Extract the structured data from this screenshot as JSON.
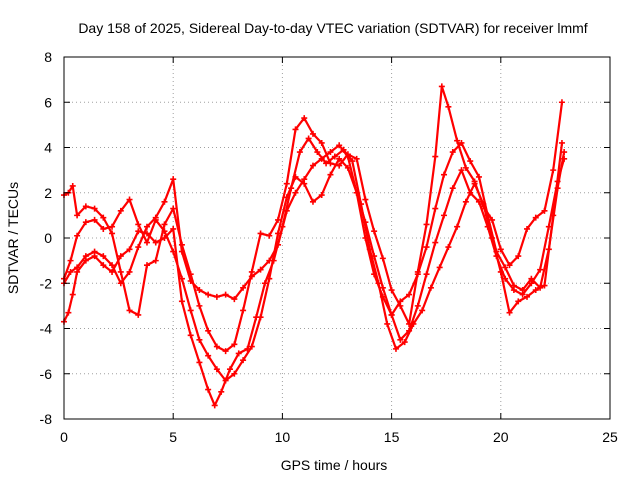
{
  "chart_data": {
    "type": "scatter",
    "title": "Day 158 of 2025, Sidereal Day-to-day VTEC variation (SDTVAR) for receiver lmmf",
    "xlabel": "GPS time / hours",
    "ylabel": "SDTVAR / TECUs",
    "xlim": [
      0,
      25
    ],
    "ylim": [
      -8,
      8
    ],
    "x_ticks": [
      "0",
      "5",
      "10",
      "15",
      "20",
      "25"
    ],
    "y_ticks": [
      "-8",
      "-6",
      "-4",
      "-2",
      "0",
      "2",
      "4",
      "6",
      "8"
    ],
    "grid": true,
    "marker": "plus",
    "color": "#ff0000",
    "series": [
      {
        "x": [
          0.0,
          0.2,
          0.4,
          0.6,
          1.0,
          1.4,
          1.8,
          2.2,
          2.6,
          3.0,
          3.4,
          3.8,
          4.2,
          4.6,
          5.0,
          5.4,
          5.8,
          6.2,
          6.6,
          6.9,
          7.2,
          7.6,
          8.0,
          8.4,
          8.8,
          9.2,
          9.6,
          10.0,
          10.4,
          10.8,
          11.2,
          11.6,
          12.0,
          12.4,
          12.8,
          13.2,
          13.6,
          14.0,
          14.4,
          14.8,
          15.2,
          15.6,
          16.0,
          16.4,
          16.8,
          17.2,
          17.6,
          18.0,
          18.4,
          18.8,
          19.2,
          19.6,
          20.0,
          20.4,
          20.8,
          21.2,
          21.6,
          22.0,
          22.4,
          22.8
        ],
        "y": [
          -3.7,
          -3.3,
          -2.5,
          -1.5,
          -1.0,
          -0.8,
          -1.2,
          -1.5,
          -0.8,
          -0.5,
          0.3,
          0.2,
          -0.2,
          0.0,
          0.4,
          -2.8,
          -4.3,
          -5.5,
          -6.7,
          -7.4,
          -6.8,
          -5.8,
          -5.1,
          -4.9,
          -3.5,
          -2.0,
          -1.0,
          0.5,
          2.2,
          3.8,
          4.4,
          3.8,
          3.3,
          3.6,
          3.9,
          3.4,
          1.5,
          -0.5,
          -2.0,
          -3.8,
          -4.9,
          -4.6,
          -3.8,
          -3.2,
          -2.2,
          -1.3,
          -0.4,
          0.5,
          1.6,
          2.4,
          1.5,
          0.0,
          -1.5,
          -3.3,
          -2.8,
          -2.6,
          -2.3,
          -2.1,
          1.0,
          4.2
        ]
      },
      {
        "x": [
          0.0,
          0.3,
          0.6,
          1.0,
          1.4,
          1.8,
          2.2,
          2.6,
          3.0,
          3.4,
          3.8,
          4.2,
          4.6,
          5.0,
          5.4,
          5.8,
          6.2,
          6.6,
          7.0,
          7.4,
          7.8,
          8.2,
          8.6,
          9.0,
          9.4,
          9.8,
          10.2,
          10.6,
          11.0,
          11.4,
          11.8,
          12.2,
          12.6,
          13.0,
          13.4,
          13.8,
          14.2,
          14.6,
          15.0,
          15.4,
          15.8,
          16.2,
          16.6,
          17.0,
          17.4,
          17.8,
          18.2,
          18.6,
          19.0,
          19.4,
          19.8,
          20.2,
          20.6,
          21.0,
          21.4,
          21.8,
          22.2,
          22.6,
          22.9
        ],
        "y": [
          -2.0,
          -1.5,
          -1.3,
          -0.8,
          -0.6,
          -0.8,
          -1.2,
          -2.0,
          -1.5,
          -0.4,
          0.5,
          0.9,
          1.6,
          2.6,
          -0.6,
          -1.9,
          -2.3,
          -2.5,
          -2.6,
          -2.5,
          -2.7,
          -2.2,
          -1.7,
          -1.4,
          -1.0,
          -0.3,
          1.2,
          2.0,
          2.6,
          3.2,
          3.5,
          3.8,
          4.1,
          3.6,
          2.0,
          0.0,
          -1.6,
          -2.6,
          -3.4,
          -4.5,
          -4.1,
          -3.0,
          -1.6,
          -0.2,
          1.0,
          2.2,
          3.0,
          2.0,
          1.6,
          0.5,
          -0.8,
          -1.8,
          -2.3,
          -2.5,
          -2.0,
          -1.4,
          0.5,
          2.5,
          3.5
        ]
      },
      {
        "x": [
          0.0,
          0.3,
          0.6,
          1.0,
          1.4,
          1.8,
          2.2,
          2.6,
          3.0,
          3.4,
          3.8,
          4.2,
          4.6,
          5.0,
          5.4,
          5.8,
          6.2,
          6.6,
          7.0,
          7.4,
          7.8,
          8.2,
          8.6,
          9.0,
          9.4,
          9.8,
          10.2,
          10.6,
          11.0,
          11.4,
          11.8,
          12.2,
          12.6,
          13.0,
          13.4,
          13.8,
          14.2,
          14.6,
          15.0,
          15.4,
          15.8,
          16.2,
          16.6,
          17.0,
          17.4,
          17.8,
          18.2,
          18.6,
          19.0,
          19.4,
          19.8,
          20.2,
          20.6,
          21.0,
          21.4,
          21.8,
          22.2,
          22.6,
          22.9
        ],
        "y": [
          -1.8,
          -1.0,
          0.1,
          0.7,
          0.8,
          0.4,
          0.5,
          1.2,
          1.7,
          0.6,
          -0.2,
          0.8,
          0.3,
          -0.6,
          -1.8,
          -3.2,
          -4.5,
          -5.2,
          -5.8,
          -6.3,
          -6.0,
          -5.4,
          -4.8,
          -3.5,
          -1.8,
          0.2,
          1.8,
          2.7,
          2.4,
          1.6,
          1.9,
          2.8,
          3.5,
          3.1,
          2.0,
          0.7,
          -0.8,
          -2.2,
          -3.4,
          -2.8,
          -2.5,
          -1.6,
          -0.4,
          1.3,
          2.8,
          3.8,
          4.2,
          3.4,
          2.7,
          1.0,
          -0.6,
          -1.3,
          -2.1,
          -2.3,
          -1.8,
          -2.2,
          -0.5,
          2.2,
          3.8
        ]
      },
      {
        "x": [
          0.0,
          0.2,
          0.4,
          0.6,
          1.0,
          1.4,
          1.8,
          2.2,
          2.6,
          3.0,
          3.4,
          3.8,
          4.2,
          4.6,
          5.0,
          5.4,
          5.8,
          6.2,
          6.6,
          7.0,
          7.4,
          7.8,
          8.2,
          8.6,
          9.0,
          9.4,
          9.8,
          10.2,
          10.6,
          11.0,
          11.4,
          11.8,
          12.2,
          12.6,
          13.0,
          13.4,
          13.8,
          14.2,
          14.6,
          15.0,
          15.4,
          15.8,
          16.2,
          16.6,
          17.0,
          17.3,
          17.6,
          18.0,
          18.4,
          18.8,
          19.2,
          19.6,
          20.0,
          20.4,
          20.8,
          21.2,
          21.6,
          22.0,
          22.4,
          22.8
        ],
        "y": [
          1.9,
          2.0,
          2.3,
          1.0,
          1.4,
          1.3,
          0.9,
          0.2,
          -1.5,
          -3.2,
          -3.4,
          -1.2,
          -1.0,
          0.6,
          1.3,
          -0.3,
          -1.6,
          -3.0,
          -4.1,
          -4.8,
          -5.0,
          -4.7,
          -3.2,
          -1.5,
          0.2,
          0.1,
          0.8,
          2.4,
          4.8,
          5.3,
          4.6,
          4.2,
          3.3,
          3.2,
          3.7,
          3.5,
          1.7,
          0.3,
          -0.9,
          -2.3,
          -3.0,
          -3.8,
          -1.5,
          0.6,
          3.6,
          6.7,
          5.8,
          4.3,
          3.1,
          2.5,
          1.4,
          0.8,
          -0.5,
          -1.2,
          -0.8,
          0.4,
          0.9,
          1.2,
          3.0,
          6.0
        ]
      }
    ]
  }
}
